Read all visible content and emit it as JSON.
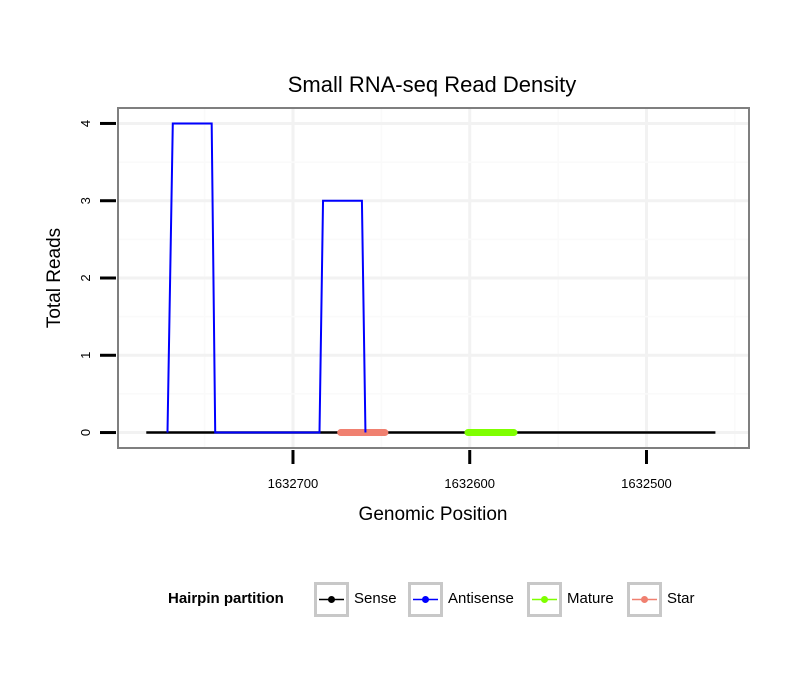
{
  "chart_data": {
    "type": "line",
    "title": "Small RNA-seq Read Density",
    "xlabel": "Genomic Position",
    "ylabel": "Total Reads",
    "x_reversed": true,
    "xlim": [
      1632799,
      1632442
    ],
    "ylim": [
      -0.2,
      4.2
    ],
    "x_ticks": [
      1632700,
      1632600,
      1632500
    ],
    "x_tick_labels": [
      "1632700",
      "1632600",
      "1632500"
    ],
    "y_ticks": [
      0,
      1,
      2,
      3,
      4
    ],
    "y_tick_labels": [
      "0",
      "1",
      "2",
      "3",
      "4"
    ],
    "grid": true,
    "series": [
      {
        "name": "Sense",
        "color": "#000000",
        "x": [
          1632783,
          1632461
        ],
        "y": [
          0,
          0
        ]
      },
      {
        "name": "Antisense",
        "color": "#0000ff",
        "x": [
          1632771,
          1632768,
          1632746,
          1632744,
          1632685,
          1632683,
          1632661,
          1632659
        ],
        "y": [
          0,
          4,
          4,
          0,
          0,
          3,
          3,
          0
        ]
      },
      {
        "name": "Mature",
        "color": "#7fff00",
        "x": [
          1632601,
          1632575
        ],
        "y": [
          0,
          0
        ]
      },
      {
        "name": "Star",
        "color": "#f08070",
        "x": [
          1632673,
          1632648
        ],
        "y": [
          0,
          0
        ]
      }
    ],
    "legend": {
      "title": "Hairpin partition",
      "position": "bottom",
      "entries": [
        "Sense",
        "Antisense",
        "Mature",
        "Star"
      ]
    }
  }
}
